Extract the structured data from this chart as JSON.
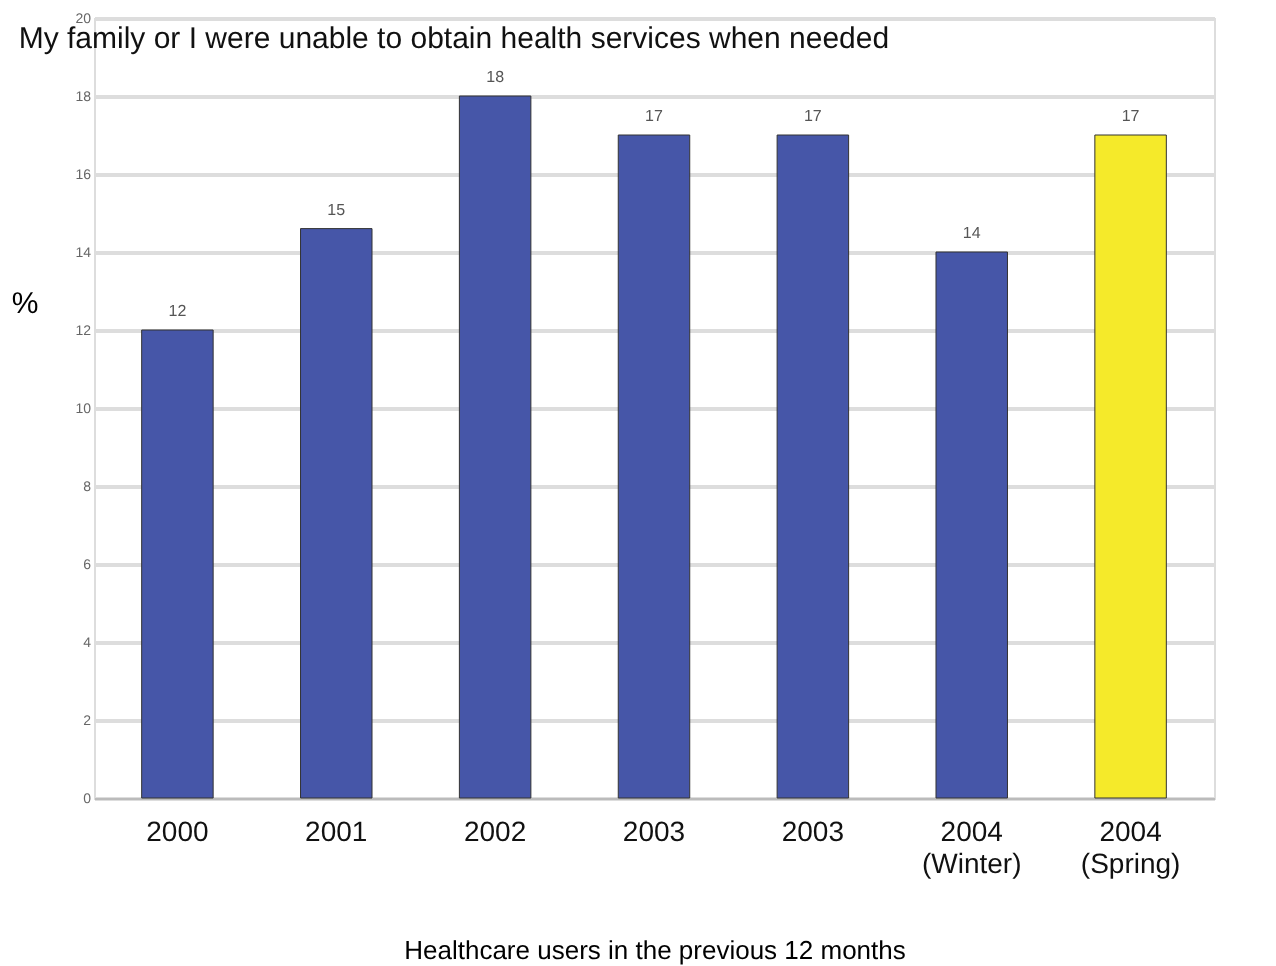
{
  "chart_data": {
    "type": "bar",
    "title": "My family or I were unable to obtain health services when needed",
    "xlabel": "Healthcare users in the previous 12 months",
    "ylabel": "%",
    "categories": [
      "2000",
      "2001",
      "2002",
      "2003",
      "2003",
      "2004 (Winter)",
      "2004 (Spring)"
    ],
    "values": [
      12,
      14.6,
      18,
      17,
      17,
      14,
      17
    ],
    "value_labels": [
      "12",
      "15",
      "18",
      "17",
      "17",
      "14",
      "17"
    ],
    "colors": [
      "#4656a8",
      "#4656a8",
      "#4656a8",
      "#4656a8",
      "#4656a8",
      "#4656a8",
      "#f5ea2a"
    ],
    "ylim": [
      0,
      20
    ],
    "yticks": [
      0,
      2,
      4,
      6,
      8,
      10,
      12,
      14,
      16,
      18,
      20
    ],
    "grid": "y",
    "legend": false
  }
}
